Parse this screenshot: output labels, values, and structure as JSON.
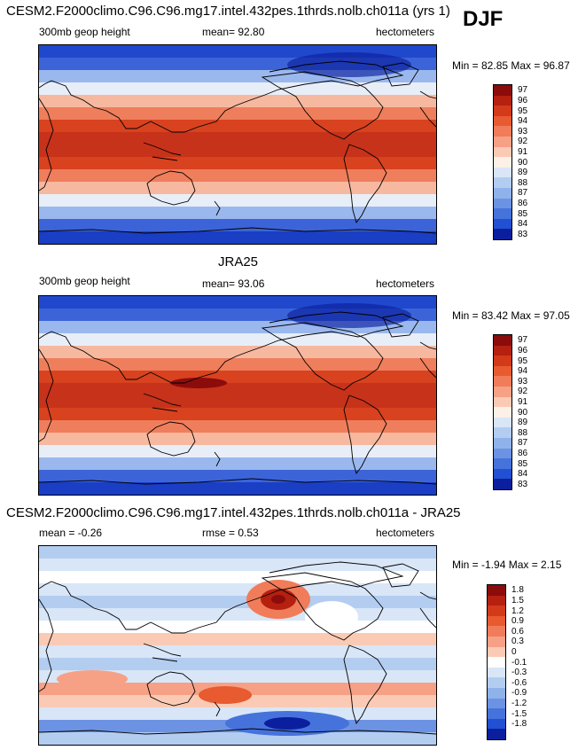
{
  "season": "DJF",
  "chart_data": [
    {
      "type": "heatmap",
      "title": "CESM2.F2000climo.C96.C96.mg17.intel.432pes.1thrds.nolb.ch011a (yrs 1)",
      "left_label": "300mb geop height",
      "center_label": "mean=  92.80",
      "right_label": "hectometers",
      "minmax_label": "Min = 82.85 Max = 96.87",
      "colorbar_levels": [
        "97",
        "96",
        "95",
        "94",
        "93",
        "92",
        "91",
        "90",
        "89",
        "88",
        "87",
        "86",
        "85",
        "84",
        "83"
      ],
      "colorbar_colors": [
        "#8c0c0c",
        "#b5200f",
        "#d23a1a",
        "#e85a30",
        "#f07c5a",
        "#f6a186",
        "#fbcab5",
        "#fdf0e6",
        "#d8e6f7",
        "#b3cdf0",
        "#8fb2ea",
        "#6c93e3",
        "#4672dc",
        "#2150d2",
        "#0b1f9e"
      ],
      "bands": [
        "#2048cc",
        "#3c64d8",
        "#9ab8ee",
        "#e8eef8",
        "#f7b8a0",
        "#ee7e5c",
        "#d8421f",
        "#c7321a",
        "#c7321a",
        "#d8421f",
        "#ef7e5c",
        "#f7b8a0",
        "#e8eef8",
        "#9ab8ee",
        "#3c64d8",
        "#1a3ec4"
      ]
    },
    {
      "type": "heatmap",
      "title": "JRA25",
      "left_label": "300mb geop height",
      "center_label": "mean=  93.06",
      "right_label": "hectometers",
      "minmax_label": "Min = 83.42 Max = 97.05",
      "colorbar_levels": [
        "97",
        "96",
        "95",
        "94",
        "93",
        "92",
        "91",
        "90",
        "89",
        "88",
        "87",
        "86",
        "85",
        "84",
        "83"
      ],
      "colorbar_colors": [
        "#8c0c0c",
        "#b5200f",
        "#d23a1a",
        "#e85a30",
        "#f07c5a",
        "#f6a186",
        "#fbcab5",
        "#fdf0e6",
        "#d8e6f7",
        "#b3cdf0",
        "#8fb2ea",
        "#6c93e3",
        "#4672dc",
        "#2150d2",
        "#0b1f9e"
      ],
      "bands": [
        "#2048cc",
        "#3c64d8",
        "#9ab8ee",
        "#e8eef8",
        "#f7b8a0",
        "#ee7e5c",
        "#d8421f",
        "#c7321a",
        "#c7321a",
        "#d8421f",
        "#ef7e5c",
        "#f7b8a0",
        "#e8eef8",
        "#9ab8ee",
        "#3c64d8",
        "#1a3ec4"
      ]
    },
    {
      "type": "heatmap",
      "title": "CESM2.F2000climo.C96.C96.mg17.intel.432pes.1thrds.nolb.ch011a - JRA25",
      "left_label": "mean =  -0.26",
      "center_label": "rmse =   0.53",
      "right_label": "hectometers",
      "minmax_label": "Min = -1.94 Max =  2.15",
      "colorbar_levels": [
        "1.8",
        "1.5",
        "1.2",
        "0.9",
        "0.6",
        "0.3",
        "0",
        "-0.1",
        "-0.3",
        "-0.6",
        "-0.9",
        "-1.2",
        "-1.5",
        "-1.8"
      ],
      "colorbar_colors": [
        "#8c0c0c",
        "#b5200f",
        "#d23a1a",
        "#e85a30",
        "#f07c5a",
        "#f6a186",
        "#fbcab5",
        "#ffffff",
        "#d8e6f7",
        "#b3cdf0",
        "#8fb2ea",
        "#6c93e3",
        "#4672dc",
        "#2150d2",
        "#0b1f9e"
      ],
      "bands": [
        "#b3cdf0",
        "#d8e6f7",
        "#ffffff",
        "#d8e6f7",
        "#b3cdf0",
        "#d8e6f7",
        "#ffffff",
        "#fbcab5",
        "#d8e6f7",
        "#b3cdf0",
        "#d8e6f7",
        "#f6a186",
        "#fbcab5",
        "#d8e6f7",
        "#6c93e3",
        "#b3cdf0"
      ]
    }
  ]
}
